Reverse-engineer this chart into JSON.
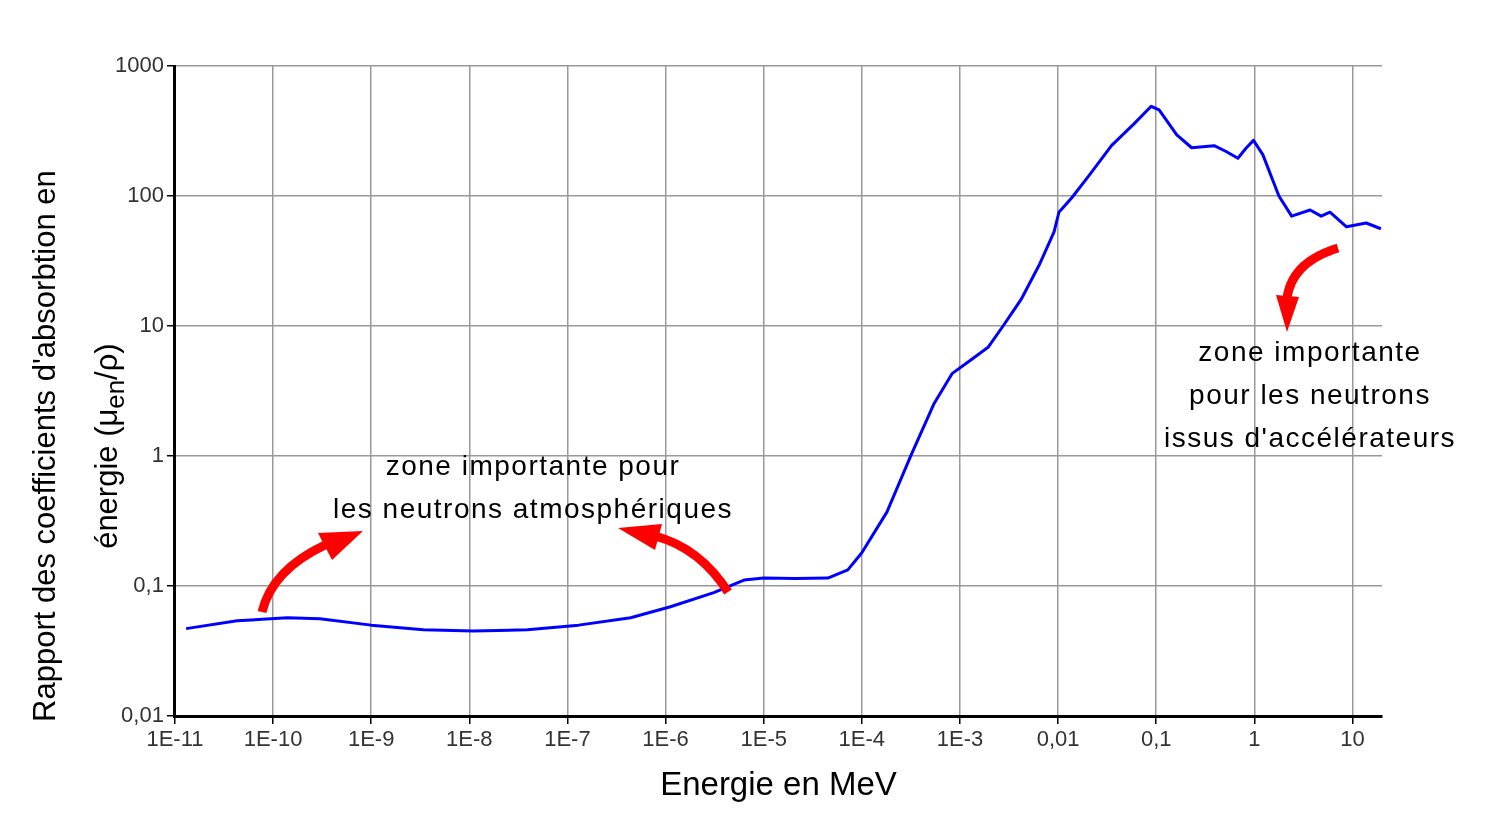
{
  "chart_data": {
    "type": "line",
    "xlabel": "Energie en MeV",
    "ylabel": "Rapport des coefficients d'absorbtion en énergie (μ$_{en}$/ρ)",
    "log": "xy",
    "grid": true,
    "legend": false,
    "marker": "none",
    "line_style": "solid",
    "xlim": [
      1e-11,
      20
    ],
    "ylim": [
      0.01,
      1000
    ],
    "xticks": [
      {
        "value": 1e-11,
        "label": "1E-11"
      },
      {
        "value": 1e-10,
        "label": "1E-10"
      },
      {
        "value": 1e-09,
        "label": "1E-9"
      },
      {
        "value": 1e-08,
        "label": "1E-8"
      },
      {
        "value": 1e-07,
        "label": "1E-7"
      },
      {
        "value": 1e-06,
        "label": "1E-6"
      },
      {
        "value": 1e-05,
        "label": "1E-5"
      },
      {
        "value": 0.0001,
        "label": "1E-4"
      },
      {
        "value": 0.001,
        "label": "1E-3"
      },
      {
        "value": 0.01,
        "label": "0,01"
      },
      {
        "value": 0.1,
        "label": "0,1"
      },
      {
        "value": 1,
        "label": "1"
      },
      {
        "value": 10,
        "label": "10"
      }
    ],
    "yticks": [
      {
        "value": 0.01,
        "label": "0,01"
      },
      {
        "value": 0.1,
        "label": "0,1"
      },
      {
        "value": 1,
        "label": "1"
      },
      {
        "value": 10,
        "label": "10"
      },
      {
        "value": 100,
        "label": "100"
      },
      {
        "value": 1000,
        "label": "1000"
      }
    ],
    "annotations": [
      "zone importante pour\nles neutrons atmosphériques",
      "zone importante\npour les neutrons\nissus d'accélérateurs"
    ],
    "series": [
      {
        "color": "#0000ff",
        "x": [
          1.3e-11,
          4.3e-11,
          1.4e-10,
          3e-10,
          1e-09,
          3.4e-09,
          1.1e-08,
          3.9e-08,
          1.3e-07,
          4.4e-07,
          1.1e-06,
          3.1e-06,
          6.3e-06,
          1e-05,
          2.1e-05,
          4.5e-05,
          7.2e-05,
          0.0001,
          0.00018,
          0.00032,
          0.00054,
          0.00083,
          0.00126,
          0.00195,
          0.00275,
          0.0042,
          0.0065,
          0.0091,
          0.0102,
          0.0138,
          0.021,
          0.035,
          0.059,
          0.089,
          0.107,
          0.162,
          0.23,
          0.39,
          0.51,
          0.68,
          0.83,
          0.98,
          1.22,
          1.78,
          2.4,
          3.7,
          4.8,
          5.9,
          8.7,
          13.8,
          19.5
        ],
        "values": [
          0.047,
          0.054,
          0.057,
          0.056,
          0.05,
          0.046,
          0.045,
          0.046,
          0.05,
          0.057,
          0.069,
          0.089,
          0.111,
          0.115,
          0.114,
          0.115,
          0.133,
          0.18,
          0.37,
          1.03,
          2.5,
          4.3,
          5.4,
          6.9,
          10,
          16,
          30,
          53,
          75,
          97,
          146,
          244,
          357,
          490,
          460,
          295,
          235,
          244,
          221,
          195,
          235,
          268,
          208,
          100,
          70,
          78,
          70,
          75,
          58,
          62,
          56
        ]
      }
    ]
  }
}
